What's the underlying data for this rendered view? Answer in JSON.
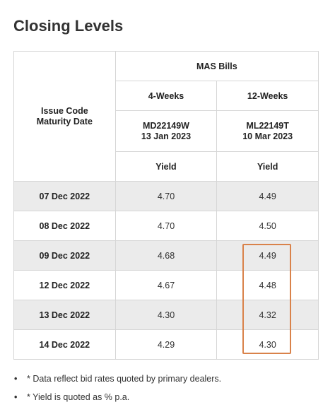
{
  "title": "Closing Levels",
  "table": {
    "group_header": "MAS Bills",
    "left_header_line1": "Issue Code",
    "left_header_line2": "Maturity Date",
    "columns": [
      {
        "tenor": "4-Weeks",
        "code": "MD22149W",
        "maturity": "13 Jan 2023",
        "metric": "Yield"
      },
      {
        "tenor": "12-Weeks",
        "code": "ML22149T",
        "maturity": "10 Mar 2023",
        "metric": "Yield"
      }
    ],
    "rows": [
      {
        "date": "07 Dec 2022",
        "v1": "4.70",
        "v2": "4.49"
      },
      {
        "date": "08 Dec 2022",
        "v1": "4.70",
        "v2": "4.50"
      },
      {
        "date": "09 Dec 2022",
        "v1": "4.68",
        "v2": "4.49"
      },
      {
        "date": "12 Dec 2022",
        "v1": "4.67",
        "v2": "4.48"
      },
      {
        "date": "13 Dec 2022",
        "v1": "4.30",
        "v2": "4.32"
      },
      {
        "date": "14 Dec 2022",
        "v1": "4.29",
        "v2": "4.30"
      }
    ]
  },
  "highlight_color": "#d9824a",
  "row_shade_color": "#ebebeb",
  "bullet_symbol": "•",
  "notes": [
    "* Data reflect bid rates quoted by primary dealers.",
    "* Yield is quoted as % p.a."
  ]
}
